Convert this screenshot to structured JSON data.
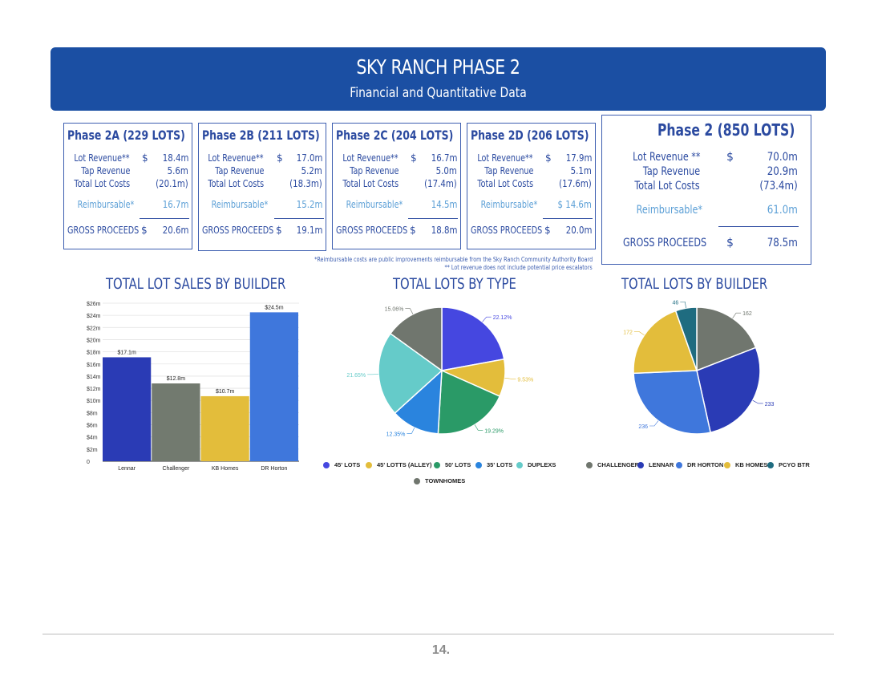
{
  "header": {
    "title": "SKY RANCH PHASE 2",
    "subtitle": "Financial and Quantitative Data"
  },
  "phases": [
    {
      "title": "Phase 2A (229 LOTS)",
      "lot_revenue_label": "Lot Revenue**",
      "lot_revenue": "18.4m",
      "tap_revenue_label": "Tap Revenue",
      "tap_revenue": "5.6m",
      "total_lot_costs_label": "Total Lot Costs",
      "total_lot_costs": "(20.1m)",
      "reimbursable_label": "Reimbursable*",
      "reimbursable": "16.7m",
      "gross_label": "GROSS PROCEEDS",
      "gross": "20.6m",
      "dollar": "$"
    },
    {
      "title": "Phase 2B (211 LOTS)",
      "lot_revenue_label": "Lot Revenue**",
      "lot_revenue": "17.0m",
      "tap_revenue_label": "Tap Revenue",
      "tap_revenue": "5.2m",
      "total_lot_costs_label": "Total Lot Costs",
      "total_lot_costs": "(18.3m)",
      "reimbursable_label": "Reimbursable*",
      "reimbursable": "15.2m",
      "gross_label": "GROSS PROCEEDS",
      "gross": "19.1m",
      "dollar": "$"
    },
    {
      "title": "Phase 2C (204 LOTS)",
      "lot_revenue_label": "Lot Revenue**",
      "lot_revenue": "16.7m",
      "tap_revenue_label": "Tap Revenue",
      "tap_revenue": "5.0m",
      "total_lot_costs_label": "Total Lot Costs",
      "total_lot_costs": "(17.4m)",
      "reimbursable_label": "Reimbursable*",
      "reimbursable": "14.5m",
      "gross_label": "GROSS PROCEEDS",
      "gross": "18.8m",
      "dollar": "$"
    },
    {
      "title": "Phase 2D (206 LOTS)",
      "lot_revenue_label": "Lot Revenue**",
      "lot_revenue": "17.9m",
      "tap_revenue_label": "Tap Revenue",
      "tap_revenue": "5.1m",
      "total_lot_costs_label": "Total Lot Costs",
      "total_lot_costs": "(17.6m)",
      "reimbursable_label": "Reimbursable*",
      "reimbursable": "$ 14.6m",
      "gross_label": "GROSS PROCEEDS",
      "gross": "20.0m",
      "dollar": "$"
    }
  ],
  "total_phase": {
    "title": "Phase 2 (850 LOTS)",
    "lot_revenue_label": "Lot Revenue **",
    "lot_revenue": "70.0m",
    "tap_revenue_label": "Tap Revenue",
    "tap_revenue": "20.9m",
    "total_lot_costs_label": "Total Lot Costs",
    "total_lot_costs": "(73.4m)",
    "reimbursable_label": "Reimbursable*",
    "reimbursable": "61.0m",
    "gross_label": "GROSS PROCEEDS",
    "gross": "78.5m",
    "dollar": "$"
  },
  "footnotes": {
    "line1": "*Reimbursable costs are public improvements reimbursable from the Sky Ranch Community Authority Board",
    "line2": "** Lot revenue does not include potential price escalators"
  },
  "chart_data": [
    {
      "type": "bar",
      "title": "TOTAL LOT SALES BY BUILDER",
      "categories": [
        "Lennar",
        "Challenger",
        "KB Homes",
        "DR Horton"
      ],
      "values": [
        17.1,
        12.8,
        10.7,
        24.5
      ],
      "data_labels": [
        "$17.1m",
        "$12.8m",
        "$10.7m",
        "$24.5m"
      ],
      "colors": [
        "#2a3bb5",
        "#727a6f",
        "#e3bd3b",
        "#3f77dc"
      ],
      "ylim": [
        0,
        26
      ],
      "yticks": [
        0,
        2,
        4,
        6,
        8,
        10,
        12,
        14,
        16,
        18,
        20,
        22,
        24,
        26
      ],
      "ytick_labels": [
        "0",
        "$2m",
        "$4m",
        "$6m",
        "$8m",
        "$10m",
        "$12m",
        "$14m",
        "$16m",
        "$18m",
        "$20m",
        "$22m",
        "$24m",
        "$26m"
      ],
      "grid": true
    },
    {
      "type": "pie",
      "title": "TOTAL LOTS BY TYPE",
      "labels": [
        "45' LOTS",
        "45' LOTTS (ALLEY)",
        "50' LOTS",
        "35' LOTS",
        "DUPLEXS",
        "TOWNHOMES"
      ],
      "values": [
        22.12,
        9.53,
        19.29,
        12.35,
        21.65,
        15.06
      ],
      "data_labels": [
        "22.12%",
        "9.53%",
        "19.29%",
        "12.35%",
        "21.65%",
        "15.06%"
      ],
      "colors": [
        "#4547e0",
        "#e3bd3b",
        "#2a9a67",
        "#2a84de",
        "#65cbc9",
        "#70766e"
      ]
    },
    {
      "type": "pie",
      "title": "TOTAL LOTS BY BUILDER",
      "labels": [
        "CHALLENGER",
        "LENNAR",
        "DR HORTON",
        "KB HOMES",
        "PCYO BTR"
      ],
      "values": [
        162,
        233,
        236,
        172,
        46
      ],
      "data_labels": [
        "162",
        "233",
        "236",
        "172",
        "46"
      ],
      "colors": [
        "#70766e",
        "#2a3bb5",
        "#3f77dc",
        "#e3bd3b",
        "#1f6c80"
      ]
    }
  ],
  "page_number": "14."
}
